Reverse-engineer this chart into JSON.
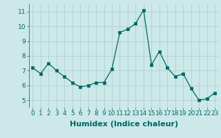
{
  "x": [
    0,
    1,
    2,
    3,
    4,
    5,
    6,
    7,
    8,
    9,
    10,
    11,
    12,
    13,
    14,
    15,
    16,
    17,
    18,
    19,
    20,
    21,
    22,
    23
  ],
  "y": [
    7.2,
    6.8,
    7.5,
    7.0,
    6.6,
    6.2,
    5.9,
    6.0,
    6.2,
    6.2,
    7.1,
    9.6,
    9.8,
    10.2,
    11.1,
    7.4,
    8.3,
    7.2,
    6.6,
    6.8,
    5.8,
    5.0,
    5.1,
    5.5
  ],
  "xlabel": "Humidex (Indice chaleur)",
  "xlim": [
    -0.5,
    23.5
  ],
  "ylim": [
    4.5,
    11.5
  ],
  "yticks": [
    5,
    6,
    7,
    8,
    9,
    10,
    11
  ],
  "xticks": [
    0,
    1,
    2,
    3,
    4,
    5,
    6,
    7,
    8,
    9,
    10,
    11,
    12,
    13,
    14,
    15,
    16,
    17,
    18,
    19,
    20,
    21,
    22,
    23
  ],
  "line_color": "#006666",
  "marker_color": "#006666",
  "background_color": "#cce8e8",
  "grid_color": "#aacccc",
  "tick_label_fontsize": 6.5,
  "xlabel_fontsize": 8,
  "tick_color": "#006666",
  "label_color": "#006666"
}
